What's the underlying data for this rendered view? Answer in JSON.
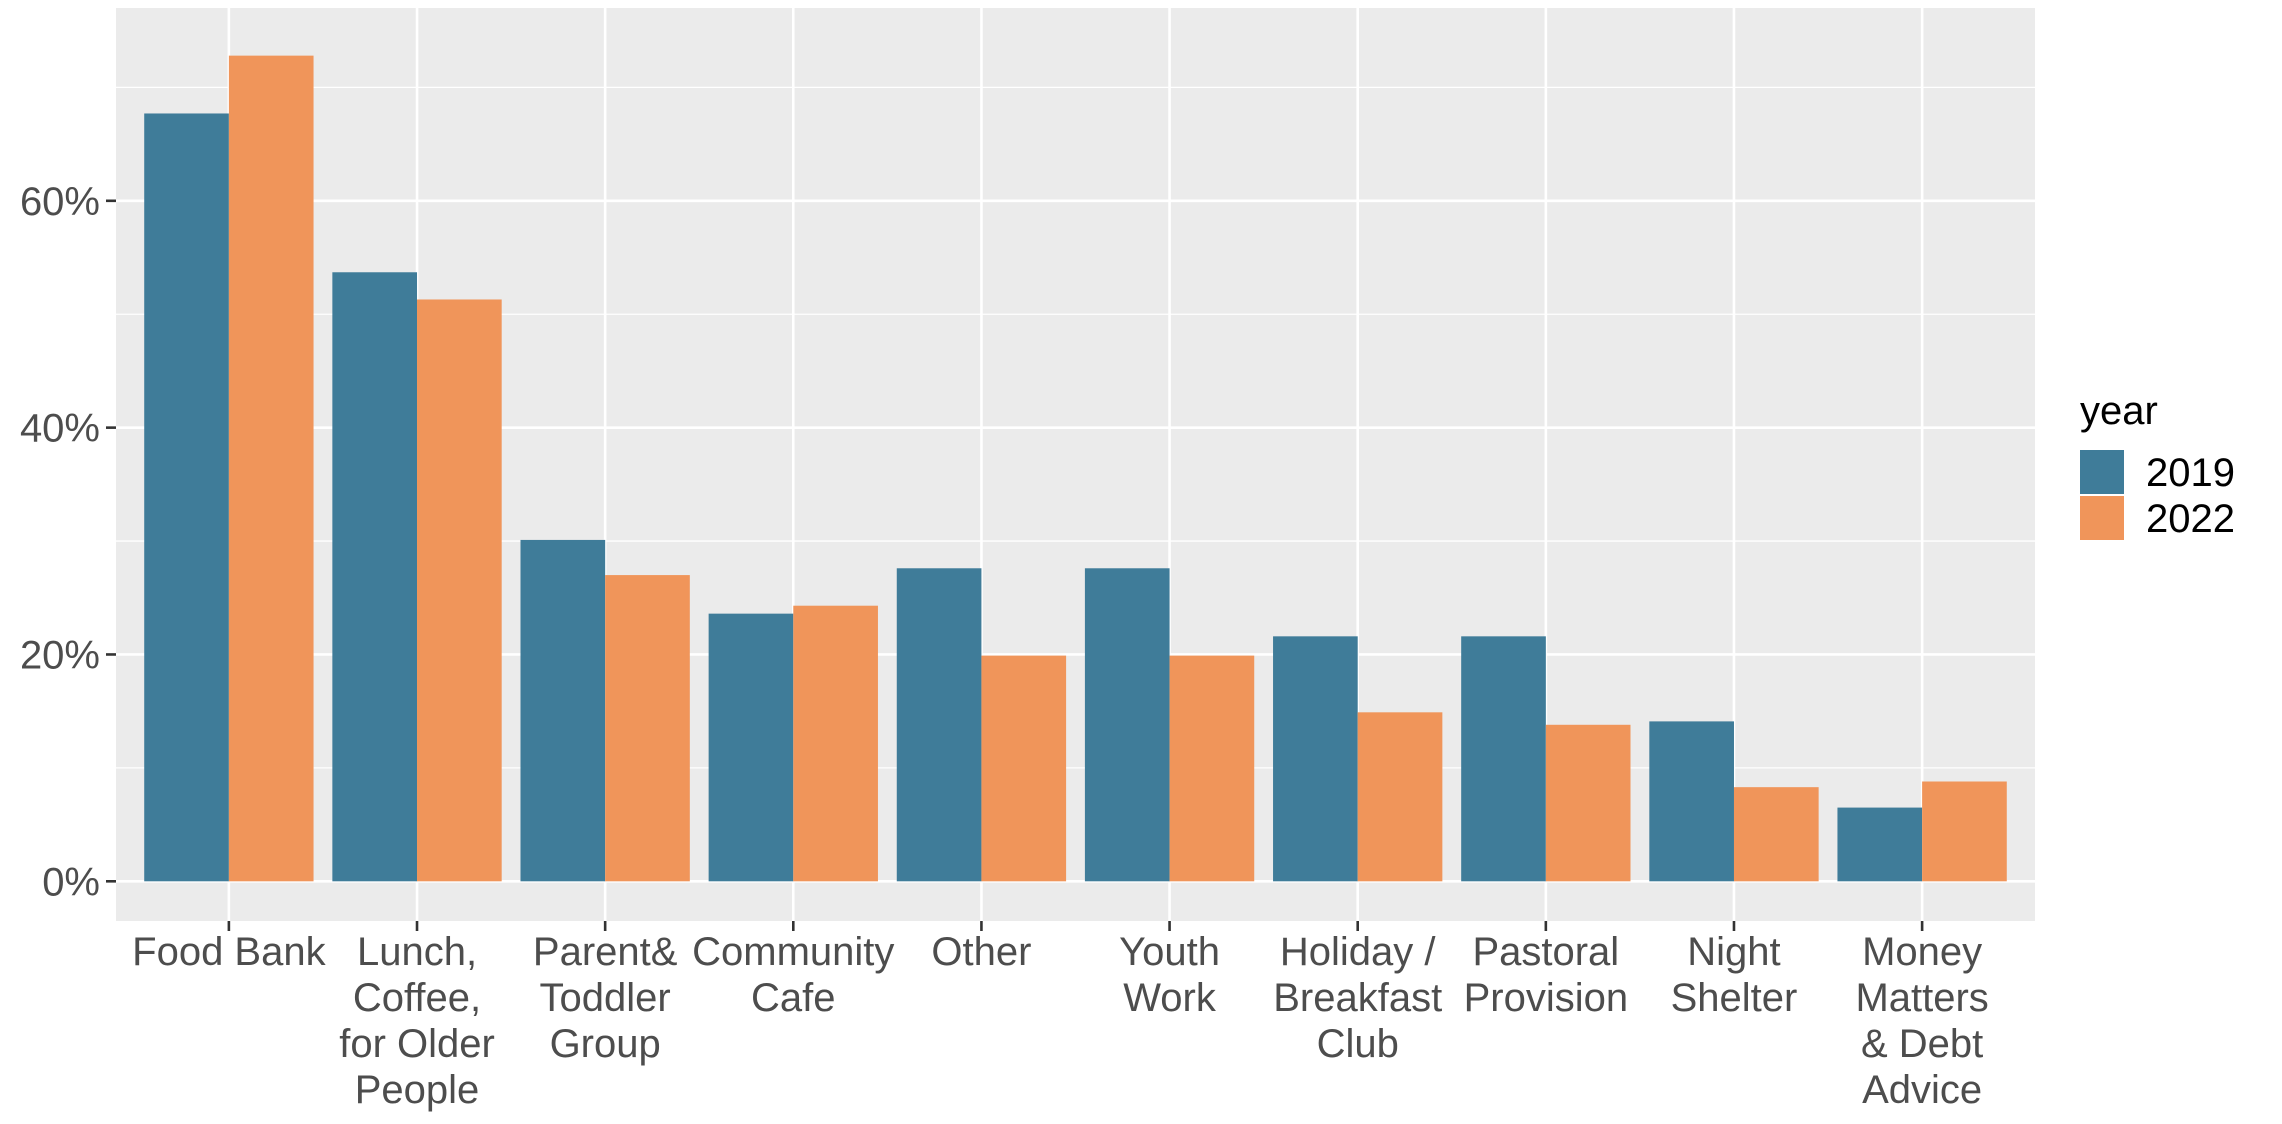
{
  "chart_data": {
    "type": "bar",
    "categories": [
      [
        "Food Bank"
      ],
      [
        "Lunch,",
        "Coffee,",
        "for Older",
        "People"
      ],
      [
        "Parent&",
        "Toddler",
        "Group"
      ],
      [
        "Community",
        "Cafe"
      ],
      [
        "Other"
      ],
      [
        "Youth",
        "Work"
      ],
      [
        "Holiday /",
        "Breakfast",
        "Club"
      ],
      [
        "Pastoral",
        "Provision"
      ],
      [
        "Night",
        "Shelter"
      ],
      [
        "Money",
        "Matters",
        "& Debt",
        "Advice"
      ]
    ],
    "series": [
      {
        "name": "2019",
        "color": "#3f7c99",
        "values": [
          67.7,
          53.7,
          30.1,
          23.6,
          27.6,
          27.6,
          21.6,
          21.6,
          14.1,
          6.5
        ]
      },
      {
        "name": "2022",
        "color": "#f0955a",
        "values": [
          72.8,
          51.3,
          27.0,
          24.3,
          19.9,
          19.9,
          14.9,
          13.8,
          8.3,
          8.8
        ]
      }
    ],
    "ylim": [
      -3.5,
      77
    ],
    "yticks": [
      0,
      20,
      40,
      60
    ],
    "ytick_labels": [
      "0%",
      "20%",
      "40%",
      "60%"
    ],
    "grid": true,
    "legend": {
      "title": "year",
      "placement": "right"
    },
    "xlabel": "",
    "ylabel": "",
    "title": ""
  }
}
